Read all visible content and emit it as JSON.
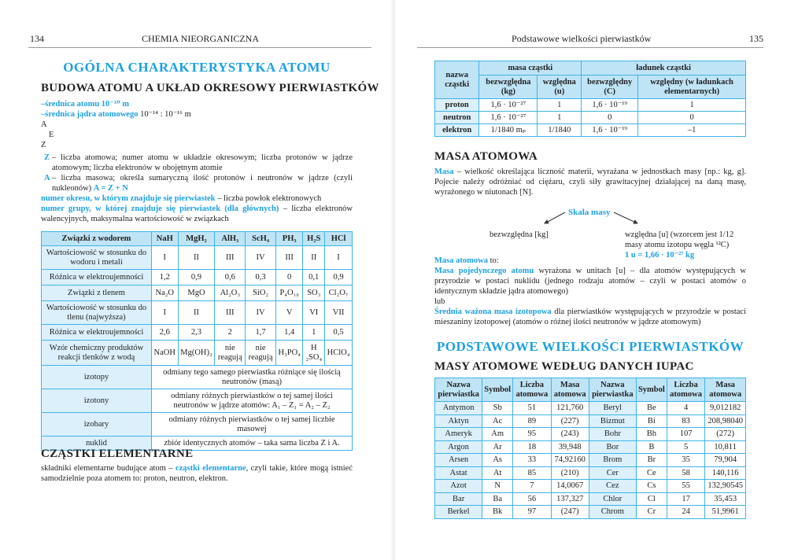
{
  "left": {
    "page_number": "134",
    "running_head": "CHEMIA NIEORGANICZNA",
    "title": "OGÓLNA CHARAKTERYSTYKA ATOMU",
    "section1": "BUDOWA ATOMU A UKŁAD OKRESOWY PIERWIASTKÓW",
    "line1": "–średnica atomu 10⁻¹⁰ m",
    "line2_blue": "–średnica jądra atomowego",
    "line2_rest": " 10⁻¹⁴ : 10⁻¹⁶ m",
    "sym_a": "A",
    "sym_e": "E",
    "sym_z": "Z",
    "z_key": "Z",
    "z_text": "– liczba atomowa; numer atomu w układzie okresowym; liczba protonów w jądrze atomowym; liczba elektronów w obojętnym atomie",
    "a_key": "A",
    "a_text": "– liczba masowa; określa sumaryczną ilość protonów i neutronów w jądrze (czyli nukleonów) ",
    "a_formula": "A = Z + N",
    "okres_blue": "numer okresu, w którym znajduje się pierwiastek",
    "okres_rest": " – liczba powłok elektronowych",
    "grupa_blue": "numer grupy, w której znajduje się pierwiastek (dla głównych)",
    "grupa_rest": " – liczba elektronów walencyjnych, maksymalna wartościowość w związkach",
    "table": {
      "header": [
        "Związki z wodorem",
        "NaH",
        "MgH₂",
        "AlH₃",
        "ScH₄",
        "PH₃",
        "H₂S",
        "HCl"
      ],
      "rows": [
        [
          "Wartościowość w stosunku do wodoru i metali",
          "I",
          "II",
          "III",
          "IV",
          "III",
          "II",
          "I"
        ],
        [
          "Różnica w elektroujemności",
          "1,2",
          "0,9",
          "0,6",
          "0,3",
          "0",
          "0,1",
          "0,9"
        ],
        [
          "Związki z tlenem",
          "Na₂O",
          "MgO",
          "Al₂O₃",
          "SiO₂",
          "P₄O₁₀",
          "SO₃",
          "Cl₂O₇"
        ],
        [
          "Wartościowość w stosunku do tlenu (najwyższa)",
          "I",
          "II",
          "III",
          "IV",
          "V",
          "VI",
          "VII"
        ],
        [
          "Różnica w elektroujemności",
          "2,6",
          "2,3",
          "2",
          "1,7",
          "1,4",
          "1",
          "0,5"
        ],
        [
          "Wzór chemiczny produktów reakcji tlenków z wodą",
          "NaOH",
          "Mg(OH)₂",
          "nie reagują",
          "nie reagują",
          "H₃PO₄",
          "H ₂SO₄",
          "HClO₄"
        ]
      ],
      "defs": [
        [
          "izotopy",
          "odmiany tego samego pierwiastka różniące się ilością neutronów (masą)"
        ],
        [
          "izotony",
          "odmiany różnych pierwiastków o tej samej ilości neutronów w jądrze atomów: A₁ – Z₁ = A₂ – Z₂"
        ],
        [
          "izobary",
          "odmiany różnych pierwiastków o tej samej liczbie masowej"
        ],
        [
          "nuklid",
          "zbiór identycznych atomów – taka sama liczba Z i A."
        ]
      ]
    },
    "section2": "CZĄSTKI ELEMENTARNE",
    "cz_pre": "składniki elementarne budujące atom – ",
    "cz_blue": "cząstki elementarne",
    "cz_post": ", czyli takie, które mogą istnieć samodzielnie poza atomem to: proton, neutron, elektron."
  },
  "right": {
    "page_number": "135",
    "running_head": "Podstawowe wielkości pierwiastków",
    "particles": {
      "h_name": "nazwa cząstki",
      "h_mass": "masa cząstki",
      "h_charge": "ładunek cząstki",
      "sub": [
        "bezwzględna (kg)",
        "względna (u)",
        "bezwzględny (C)",
        "względny (w ładunkach elementarnych)"
      ],
      "rows": [
        [
          "proton",
          "1,6 · 10⁻²⁷",
          "1",
          "1,6 · 10⁻¹⁹",
          "1"
        ],
        [
          "neutron",
          "1,6 · 10⁻²⁷",
          "1",
          "0",
          "0"
        ],
        [
          "elektron",
          "1/1840 mₚ",
          "1/1840",
          "1,6 · 10⁻¹⁹",
          "–1"
        ]
      ]
    },
    "section_masa": "MASA ATOMOWA",
    "masa_blue": "Masa",
    "masa_text": " – wielkość określająca liczność materii, wyrażana w jednostkach masy [np.: kg, g]. Pojecie należy odróżniać od ciężaru, czyli siły grawitacyjnej działającej na daną masę, wyrażonego w niutonach [N].",
    "skala": "Skala masy",
    "skala_left": "bezwzględna [kg]",
    "skala_right": "względna [u] (wzorcem jest 1/12 masy atomu izotopu węgla ¹²C)",
    "skala_formula": "1 u = 1,66 · 10⁻²⁷ kg",
    "ma_blue": "Masa atomowa",
    "ma_rest": " to:",
    "mpa_blue": "Masa pojedynczego atomu",
    "mpa_rest": " wyrażona w unitach [u] – dla atomów występujących w przyrodzie w postaci nuklidu (jednego rodzaju atomów – czyli w postaci atomów o identycznym składzie jądra atomowego)",
    "lub": "lub",
    "sw_blue": "Średnia ważona masa izotopowa",
    "sw_rest": " dla pierwiastków występujących w przyrodzie w postaci mieszaniny izotopowej (atomów o różnej ilości neutronów w jądrze atomowym)",
    "title2": "PODSTAWOWE WIELKOŚCI PIERWIASTKÓW",
    "section_iupac": "MASY ATOMOWE WEDŁUG DANYCH IUPAC",
    "iupac": {
      "header": [
        "Nazwa pierwiastka",
        "Symbol",
        "Liczba atomowa",
        "Masa atomowa",
        "Nazwa pierwiastka",
        "Symbol",
        "Liczba atomowa",
        "Masa atomowa"
      ],
      "rows": [
        [
          "Antymon",
          "Sb",
          "51",
          "121,760",
          "Beryl",
          "Be",
          "4",
          "9,012182"
        ],
        [
          "Aktyn",
          "Ac",
          "89",
          "(227)",
          "Bizmut",
          "Bi",
          "83",
          "208,98040"
        ],
        [
          "Ameryk",
          "Am",
          "95",
          "(243)",
          "Bohr",
          "Bh",
          "107",
          "(272)"
        ],
        [
          "Argon",
          "Ar",
          "18",
          "39,948",
          "Bor",
          "B",
          "5",
          "10,811"
        ],
        [
          "Arsen",
          "As",
          "33",
          "74,92160",
          "Brom",
          "Br",
          "35",
          "79,904"
        ],
        [
          "Astat",
          "At",
          "85",
          "(210)",
          "Cer",
          "Ce",
          "58",
          "140,116"
        ],
        [
          "Azot",
          "N",
          "7",
          "14,0067",
          "Cez",
          "Cs",
          "55",
          "132,90545"
        ],
        [
          "Bar",
          "Ba",
          "56",
          "137,327",
          "Chlor",
          "Cl",
          "17",
          "35,453"
        ],
        [
          "Berkel",
          "Bk",
          "97",
          "(247)",
          "Chrom",
          "Cr",
          "24",
          "51,9961"
        ]
      ]
    }
  },
  "colors": {
    "accent": "#1ba1e2",
    "header_fill": "#bfe4f6",
    "first_col_fill": "#dbf0fb",
    "border": "#3fb4e8"
  }
}
